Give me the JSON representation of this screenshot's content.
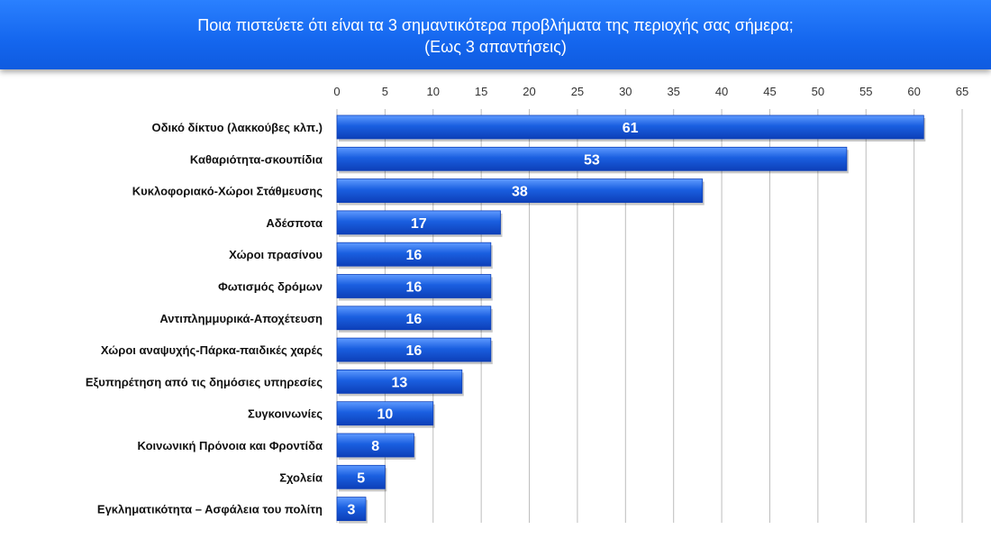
{
  "header": {
    "title_line1": "Ποια πιστεύετε ότι είναι τα 3 σημαντικότερα προβλήματα της περιοχής σας σήμερα;",
    "title_line2": "(Εως 3 απαντήσεις)"
  },
  "colors": {
    "banner": "#1466ee",
    "bar": "#1a5fe0",
    "bar_light": "#5f9bff",
    "bar_dark": "#0d3fb8",
    "grid": "#bdbdbd"
  },
  "chart_data": {
    "type": "bar",
    "orientation": "horizontal",
    "title": "Ποια πιστεύετε ότι είναι τα 3 σημαντικότερα προβλήματα της περιοχής σας σήμερα;",
    "subtitle": "(Εως 3 απαντήσεις)",
    "xlabel": "",
    "ylabel": "",
    "xlim": [
      0,
      65
    ],
    "x_ticks": [
      0,
      5,
      10,
      15,
      20,
      25,
      30,
      35,
      40,
      45,
      50,
      55,
      60,
      65
    ],
    "axis_position": "top",
    "grid": true,
    "legend": "none",
    "categories": [
      "Οδικό δίκτυο (λακκούβες κλπ.)",
      "Καθαριότητα-σκουπίδια",
      "Κυκλοφοριακό-Χώροι Στάθμευσης",
      "Αδέσποτα",
      "Χώροι πρασίνου",
      "Φωτισμός δρόμων",
      "Αντιπλημμυρικά-Αποχέτευση",
      "Χώροι αναψυχής-Πάρκα-παιδικές χαρές",
      "Εξυπηρέτηση από τις δημόσιες υπηρεσίες",
      "Συγκοινωνίες",
      "Κοινωνική Πρόνοια και Φροντίδα",
      "Σχολεία",
      "Εγκληματικότητα – Ασφάλεια του πολίτη"
    ],
    "values": [
      61,
      53,
      38,
      17,
      16,
      16,
      16,
      16,
      13,
      10,
      8,
      5,
      3
    ],
    "data_labels": [
      "61",
      "53",
      "38",
      "17",
      "16",
      "16",
      "16",
      "16",
      "13",
      "10",
      "8",
      "5",
      "3"
    ]
  }
}
